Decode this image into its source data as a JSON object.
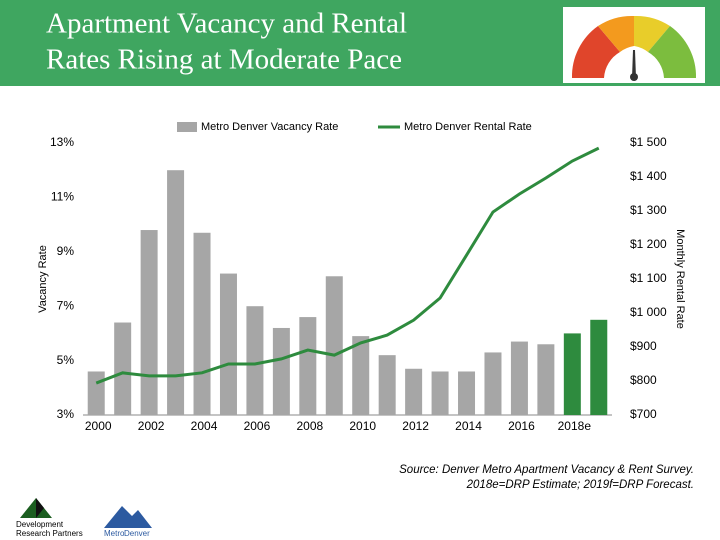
{
  "header": {
    "title": [
      "Apartment Vacancy and Rental",
      "Rates Rising at Moderate Pace"
    ]
  },
  "chart_data": {
    "type": "bar",
    "categories": [
      "2000",
      null,
      "2002",
      null,
      "2004",
      null,
      "2006",
      null,
      "2008",
      null,
      "2010",
      null,
      "2012",
      null,
      "2014",
      null,
      "2016",
      null,
      "2018e",
      null
    ],
    "series": [
      {
        "name": "Metro Denver Vacancy Rate",
        "type": "bar",
        "color": "#a6a6a6",
        "colors": [
          "#a6a6a6",
          "#a6a6a6",
          "#a6a6a6",
          "#a6a6a6",
          "#a6a6a6",
          "#a6a6a6",
          "#a6a6a6",
          "#a6a6a6",
          "#a6a6a6",
          "#a6a6a6",
          "#a6a6a6",
          "#a6a6a6",
          "#a6a6a6",
          "#a6a6a6",
          "#a6a6a6",
          "#a6a6a6",
          "#a6a6a6",
          "#a6a6a6",
          "#2e8b3e",
          "#2e8b3e"
        ],
        "values": [
          4.6,
          6.4,
          9.8,
          12.0,
          9.7,
          8.2,
          7.0,
          6.2,
          6.6,
          8.1,
          5.9,
          5.2,
          4.7,
          4.6,
          4.6,
          5.3,
          5.7,
          5.6,
          6.0,
          6.5
        ]
      },
      {
        "name": "Metro Denver Rental Rate",
        "type": "line",
        "axis": "y2",
        "color": "#2e8b3e",
        "values": [
          794,
          824,
          815,
          815,
          824,
          850,
          850,
          865,
          891,
          876,
          912,
          935,
          979,
          1044,
          1170,
          1297,
          1350,
          1397,
          1447,
          1485
        ]
      }
    ],
    "ylabel": "Vacancy Rate",
    "y2label": "Monthly Rental Rate",
    "ylim": [
      3,
      13
    ],
    "yticks": [
      {
        "value": 3,
        "label": "3%"
      },
      {
        "value": 5,
        "label": "5%"
      },
      {
        "value": 7,
        "label": "7%"
      },
      {
        "value": 9,
        "label": "9%"
      },
      {
        "value": 11,
        "label": "11%"
      },
      {
        "value": 13,
        "label": "13%"
      }
    ],
    "y2lim": [
      700,
      1500
    ],
    "y2ticks": [
      {
        "value": 700,
        "label": "$700"
      },
      {
        "value": 800,
        "label": "$800"
      },
      {
        "value": 900,
        "label": "$900"
      },
      {
        "value": 1000,
        "label": "$1 000"
      },
      {
        "value": 1100,
        "label": "$1 100"
      },
      {
        "value": 1200,
        "label": "$1 200"
      },
      {
        "value": 1300,
        "label": "$1 300"
      },
      {
        "value": 1400,
        "label": "$1 400"
      },
      {
        "value": 1500,
        "label": "$1 500"
      }
    ],
    "grid": false
  },
  "source": [
    "Source:  Denver Metro Apartment Vacancy & Rent Survey.",
    "2018e=DRP Estimate; 2019f=DRP Forecast."
  ],
  "logos": {
    "drp": [
      "Development",
      "Research Partners"
    ],
    "metro": [
      "Metro",
      "Denver"
    ]
  }
}
